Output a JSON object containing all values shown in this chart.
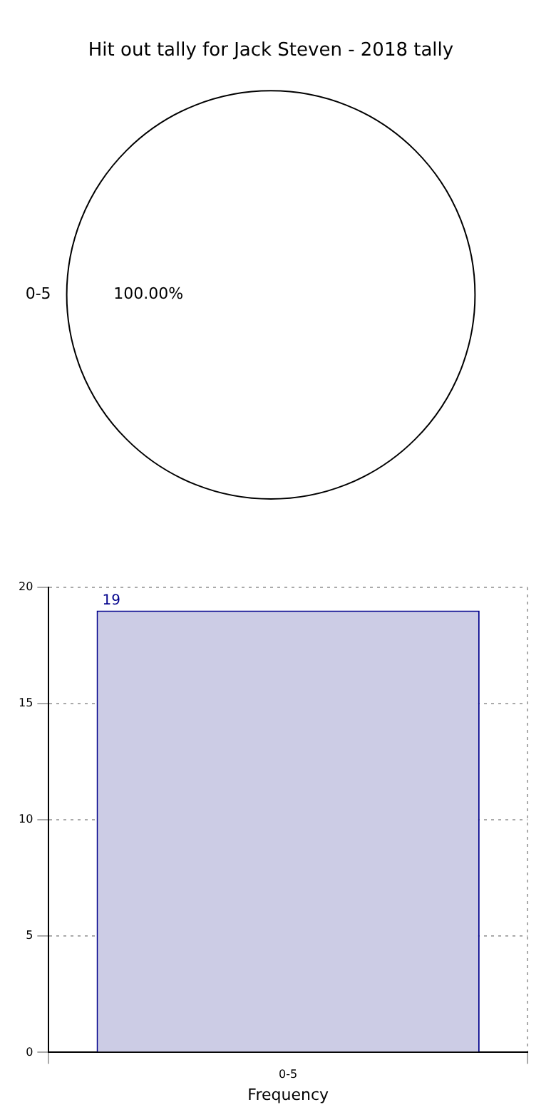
{
  "chart_data": [
    {
      "type": "pie",
      "title": "Hit out tally for Jack Steven - 2018 tally",
      "categories": [
        "0-5"
      ],
      "values": [
        100
      ],
      "colors": [
        "#ffffff"
      ],
      "value_labels": [
        "100.00%"
      ],
      "legend": false
    },
    {
      "type": "bar",
      "xlabel": "Frequency",
      "categories": [
        "0-5"
      ],
      "values": [
        19
      ],
      "color": "#cccce5",
      "data_labels": true,
      "ylim": [
        0,
        20
      ],
      "yticks": [
        0,
        5,
        10,
        15,
        20
      ],
      "grid": true,
      "legend": false
    }
  ]
}
